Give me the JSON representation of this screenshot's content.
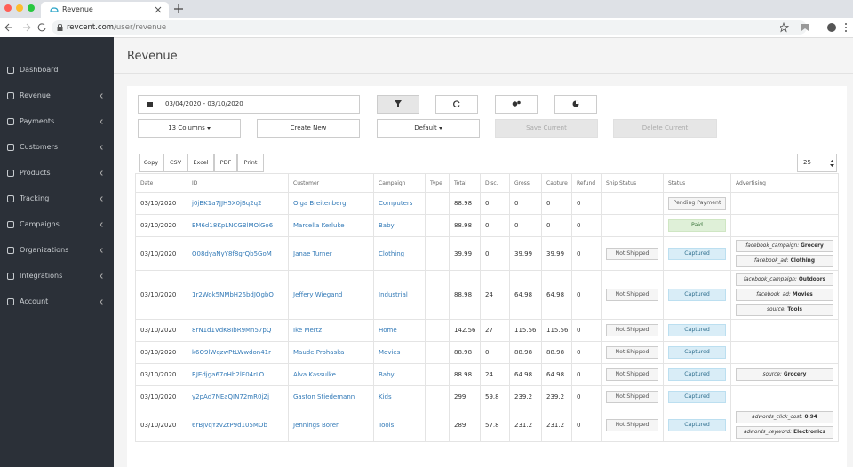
{
  "browser": {
    "tab_title": "Revenue",
    "url_host": "revcent.com",
    "url_path": "/user/revenue"
  },
  "sidebar": {
    "items": [
      "Dashboard",
      "Revenue",
      "Payments",
      "Customers",
      "Products",
      "Tracking",
      "Campaigns",
      "Organizations",
      "Integrations",
      "Account"
    ]
  },
  "header": {
    "title": "Revenue"
  },
  "toolbar": {
    "date_range": "03/04/2020 - 03/10/2020",
    "columns": "13 Columns",
    "create": "Create New",
    "preset": "Default",
    "save": "Save Current",
    "delete": "Delete Current"
  },
  "export": {
    "buttons": [
      "Copy",
      "CSV",
      "Excel",
      "PDF",
      "Print"
    ],
    "page_size": "25"
  },
  "table": {
    "columns": [
      "Date",
      "ID",
      "Customer",
      "Campaign",
      "Type",
      "Total",
      "Disc.",
      "Gross",
      "Capture",
      "Refund",
      "Ship Status",
      "Status",
      "Advertising"
    ],
    "rows": [
      {
        "date": "03/10/2020",
        "id": "j0jBK1a7JJH5X0jBq2q2",
        "customer": "Olga Breitenberg",
        "campaign": "Computers",
        "total": 88.98,
        "disc": 0,
        "gross": 0,
        "capture": 0,
        "refund": 0,
        "status": "Pending Payment",
        "advertising": []
      },
      {
        "date": "03/10/2020",
        "id": "EM6d18KpLNCGBlMOlGo6",
        "customer": "Marcella Kerluke",
        "campaign": "Baby",
        "total": 88.98,
        "disc": 0,
        "gross": 0,
        "capture": 0,
        "refund": 0,
        "status": "Paid",
        "advertising": []
      },
      {
        "date": "03/10/2020",
        "id": "O08dyaNyY8f8grQb5GoM",
        "customer": "Janae Turner",
        "campaign": "Clothing",
        "total": 39.99,
        "disc": 0,
        "gross": 39.99,
        "capture": 39.99,
        "refund": 0,
        "ship_status": "Not Shipped",
        "status": "Captured",
        "advertising": [
          {
            "key": "facebook_campaign:",
            "value": "Grocery"
          },
          {
            "key": "facebook_ad:",
            "value": "Clothing"
          }
        ]
      },
      {
        "date": "03/10/2020",
        "id": "1r2Wok5NMbH26bdJQgbO",
        "customer": "Jeffery Wiegand",
        "campaign": "Industrial",
        "total": 88.98,
        "disc": 24,
        "gross": 64.98,
        "capture": 64.98,
        "refund": 0,
        "ship_status": "Not Shipped",
        "status": "Captured",
        "advertising": [
          {
            "key": "facebook_campaign:",
            "value": "Outdoors"
          },
          {
            "key": "facebook_ad:",
            "value": "Movies"
          },
          {
            "key": "source:",
            "value": "Tools"
          }
        ]
      },
      {
        "date": "03/10/2020",
        "id": "8rN1d1VdK8IbR9Mn57pQ",
        "customer": "Ike Mertz",
        "campaign": "Home",
        "total": 142.56,
        "disc": 27,
        "gross": 115.56,
        "capture": 115.56,
        "refund": 0,
        "ship_status": "Not Shipped",
        "status": "Captured",
        "advertising": []
      },
      {
        "date": "03/10/2020",
        "id": "k6O9lWqzwPtLWwdon41r",
        "customer": "Maude Prohaska",
        "campaign": "Movies",
        "total": 88.98,
        "disc": 0,
        "gross": 88.98,
        "capture": 88.98,
        "refund": 0,
        "ship_status": "Not Shipped",
        "status": "Captured",
        "advertising": []
      },
      {
        "date": "03/10/2020",
        "id": "RJEdjga67oHb2lE04rLO",
        "customer": "Alva Kassulke",
        "campaign": "Baby",
        "total": 88.98,
        "disc": 24,
        "gross": 64.98,
        "capture": 64.98,
        "refund": 0,
        "ship_status": "Not Shipped",
        "status": "Captured",
        "advertising": [
          {
            "key": "source:",
            "value": "Grocery"
          }
        ]
      },
      {
        "date": "03/10/2020",
        "id": "y2pAd7NEaQIN72mR0jZj",
        "customer": "Gaston Stiedemann",
        "campaign": "Kids",
        "total": 299,
        "disc": 59.8,
        "gross": 239.2,
        "capture": 239.2,
        "refund": 0,
        "ship_status": "Not Shipped",
        "status": "Captured",
        "advertising": []
      },
      {
        "date": "03/10/2020",
        "id": "6rBJvqYzvZtP9d105MOb",
        "customer": "Jennings Borer",
        "campaign": "Tools",
        "total": 289,
        "disc": 57.8,
        "gross": 231.2,
        "capture": 231.2,
        "refund": 0,
        "ship_status": "Not Shipped",
        "status": "Captured",
        "advertising": [
          {
            "key": "adwords_click_cost:",
            "value": "0.94"
          },
          {
            "key": "adwords_keyword:",
            "value": "Electronics"
          }
        ]
      }
    ]
  }
}
